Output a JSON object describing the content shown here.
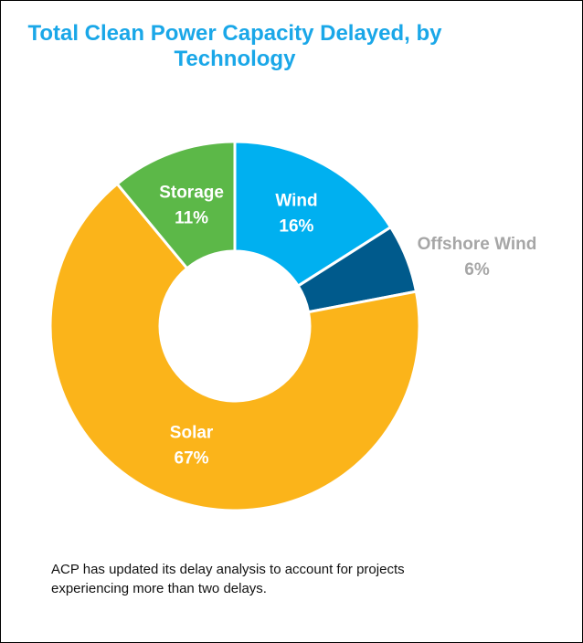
{
  "chart_data": {
    "type": "donut",
    "title": "Total Clean Power Capacity Delayed, by Technology",
    "categories": [
      "Wind",
      "Offshore Wind",
      "Solar",
      "Storage"
    ],
    "values": [
      16,
      6,
      67,
      11
    ],
    "value_labels": [
      "16%",
      "6%",
      "67%",
      "11%"
    ],
    "colors": [
      "#00b0f0",
      "#005a8c",
      "#fbb41a",
      "#5cb848"
    ],
    "note": "ACP has updated its delay analysis to account for projects experiencing more than two delays."
  }
}
